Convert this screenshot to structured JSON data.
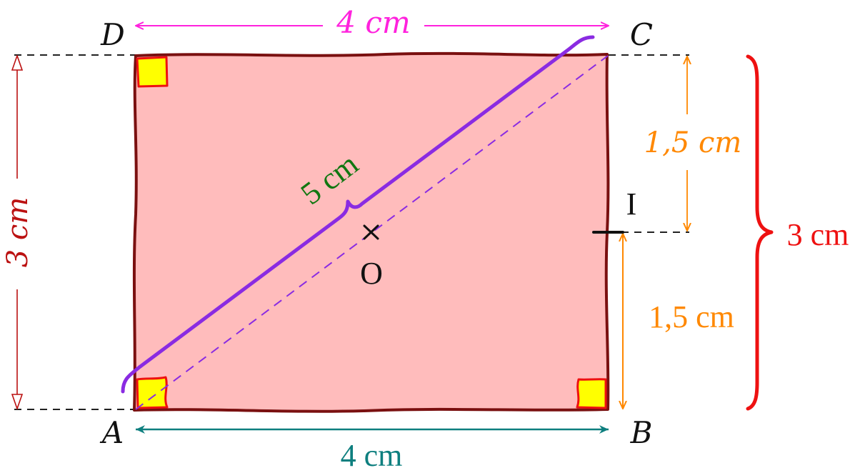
{
  "figure": {
    "vertices": {
      "a": "A",
      "b": "B",
      "c": "C",
      "d": "D"
    },
    "points": {
      "o": "O",
      "i": "I"
    },
    "dimensions": {
      "top": "4 cm",
      "bottom": "4 cm",
      "left": "3 cm",
      "right": "3 cm",
      "upper_half": "1,5 cm",
      "lower_half": "1,5 cm",
      "diagonal": "5 cm"
    },
    "colors": {
      "fill": "#ffbcbc",
      "outline": "#7a1010",
      "right_angle_fill": "#ffff00",
      "right_angle_stroke": "#ee1111",
      "top_dimension": "#ff22dd",
      "bottom_dimension": "#0e7f7f",
      "left_dimension": "#bb1111",
      "right_dimension": "#ee1111",
      "half_dimension": "#ff8800",
      "diagonal": "#8a2be2",
      "diagonal_label": "#117711",
      "labels": "#111111"
    }
  }
}
